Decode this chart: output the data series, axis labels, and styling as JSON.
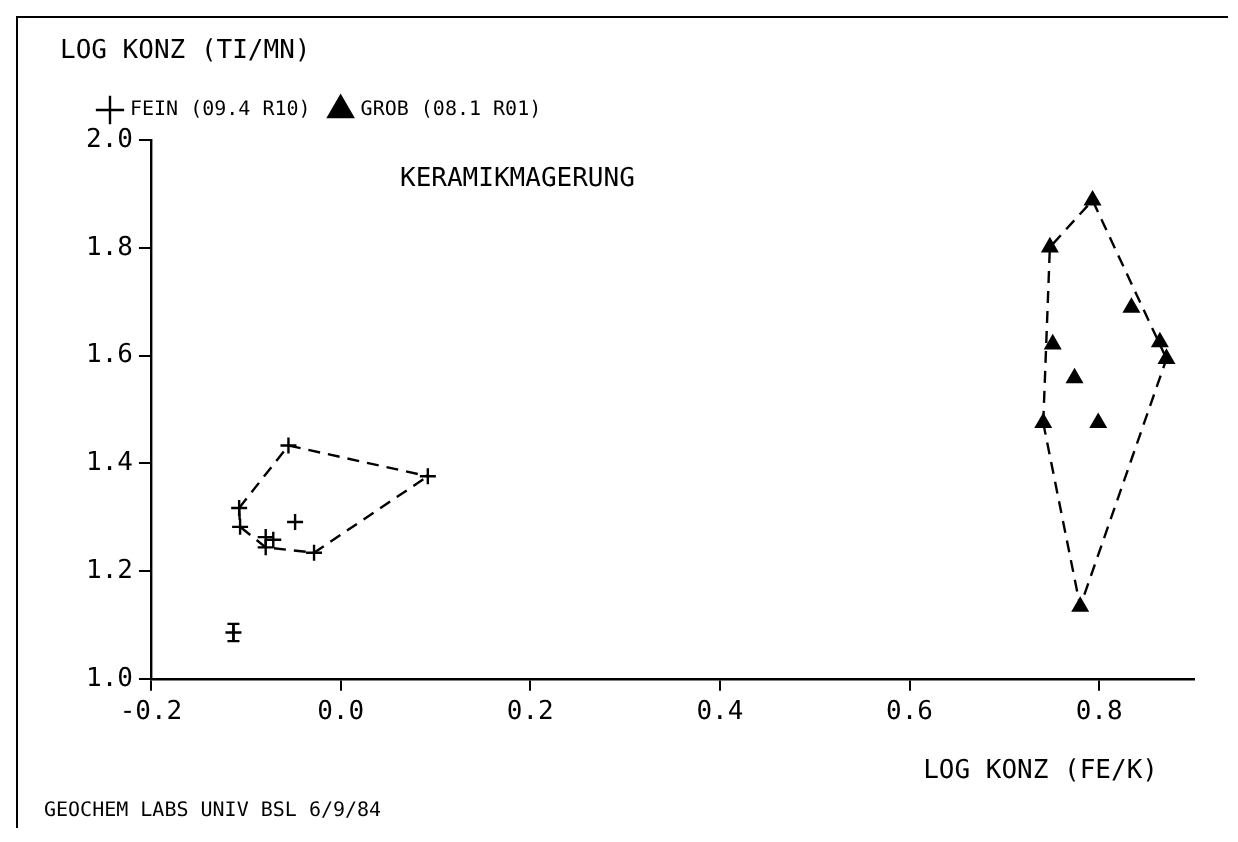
{
  "chart_data": {
    "type": "scatter",
    "title": "KERAMIKMAGERUNG",
    "xlabel": "LOG KONZ (FE/K)",
    "ylabel": "LOG KONZ (TI/MN)",
    "annotations": [
      "GEOCHEM LABS UNIV BSL 6/9/84"
    ],
    "xlim": [
      -0.2,
      0.9
    ],
    "ylim": [
      1.0,
      2.0
    ],
    "xticks": [
      {
        "value": -0.2,
        "label": "-0.2"
      },
      {
        "value": 0,
        "label": "0.0"
      },
      {
        "value": 0.2,
        "label": "0.2"
      },
      {
        "value": 0.4,
        "label": "0.4"
      },
      {
        "value": 0.6,
        "label": "0.6"
      },
      {
        "value": 0.8,
        "label": "0.8"
      }
    ],
    "yticks": [
      {
        "value": 1,
        "label": "1.0"
      },
      {
        "value": 1.2,
        "label": "1.2"
      },
      {
        "value": 1.4,
        "label": "1.4"
      },
      {
        "value": 1.6,
        "label": "1.6"
      },
      {
        "value": 1.8,
        "label": "1.8"
      },
      {
        "value": 2,
        "label": "2.0"
      }
    ],
    "grid": false,
    "legend": "top left",
    "series": [
      {
        "name": "FEIN (09.4 R10)",
        "color": "#000000",
        "marker": "cross",
        "x": [
          -0.055,
          0.092,
          -0.107,
          -0.106,
          -0.048,
          -0.079,
          -0.071,
          -0.079,
          -0.028
        ],
        "values": [
          1.433,
          1.376,
          1.317,
          1.282,
          1.291,
          1.263,
          1.258,
          1.244,
          1.234
        ]
      },
      {
        "name": "GROB (08.1 R01)",
        "color": "#000000",
        "marker": "triangle",
        "x": [
          0.793,
          0.748,
          0.834,
          0.864,
          0.871,
          0.751,
          0.774,
          0.741,
          0.799,
          0.78
        ],
        "values": [
          1.888,
          1.801,
          1.689,
          1.625,
          1.594,
          1.621,
          1.558,
          1.475,
          1.475,
          1.134
        ]
      },
      {
        "color": "#000000",
        "marker": "cross",
        "x": [
          -0.113
        ],
        "values": [
          1.086
        ],
        "errors": [
          0.016
        ]
      },
      {
        "type": "line",
        "color": "#000000",
        "line_style": "dashed",
        "marker": "none",
        "x": [
          -0.107,
          -0.055,
          0.092
        ],
        "values": [
          1.317,
          1.433,
          1.376
        ]
      },
      {
        "type": "line",
        "color": "#000000",
        "line_style": "dashed",
        "marker": "none",
        "x": [
          -0.107,
          -0.106,
          -0.079,
          -0.028,
          0.092
        ],
        "values": [
          1.317,
          1.282,
          1.244,
          1.234,
          1.376
        ]
      },
      {
        "type": "line",
        "color": "#000000",
        "line_style": "dashed",
        "marker": "none",
        "x": [
          0.741,
          0.748,
          0.793,
          0.871
        ],
        "values": [
          1.475,
          1.801,
          1.888,
          1.594
        ]
      },
      {
        "type": "line",
        "color": "#000000",
        "line_style": "dashed",
        "marker": "none",
        "x": [
          0.741,
          0.78,
          0.871
        ],
        "values": [
          1.475,
          1.134,
          1.594
        ]
      }
    ]
  }
}
